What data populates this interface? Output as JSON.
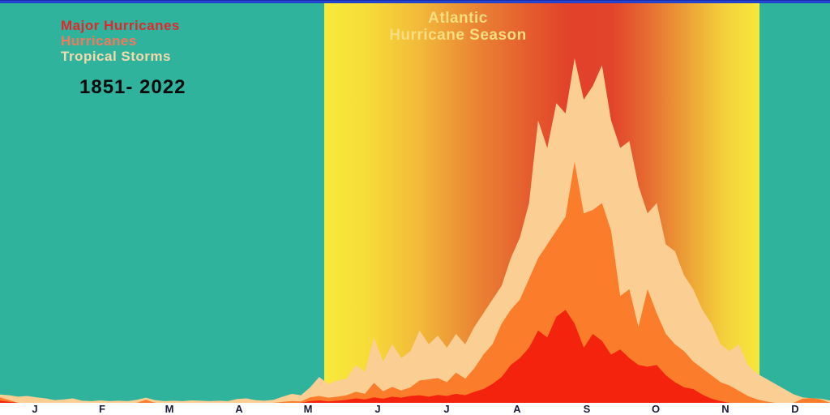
{
  "title": {
    "line1": "Atlantic",
    "line2": "Hurricane Season"
  },
  "legend": {
    "items": [
      {
        "label": "Major Hurricanes",
        "color": "#e2282d"
      },
      {
        "label": "Hurricanes",
        "color": "#f4795b"
      },
      {
        "label": "Tropical Storms",
        "color": "#f6d9ac"
      }
    ],
    "period": "1851- 2022"
  },
  "colors": {
    "background_teal": "#2fb39c",
    "season_band_yellow": "#f8ea3a",
    "season_band_red": "#e2422a",
    "top_border_blue": "#2b52e8",
    "axis_strip": "#ffffff",
    "baseline": "#9191b5",
    "month_label": "#1b1b3a"
  },
  "chart_data": {
    "type": "area",
    "title": "Atlantic Hurricane Season",
    "period": "1851- 2022",
    "x_unit": "day_of_year",
    "start_day": 1,
    "sample_interval_days": 4,
    "y_unit": "relative storm frequency (storms per 100 years)",
    "ylim": [
      0,
      100
    ],
    "season_band": {
      "start": "Jun 1",
      "end": "Nov 30"
    },
    "months": [
      "J",
      "F",
      "M",
      "A",
      "M",
      "J",
      "J",
      "A",
      "S",
      "O",
      "N",
      "D"
    ],
    "month_lengths": [
      31,
      28,
      31,
      30,
      31,
      30,
      31,
      31,
      30,
      31,
      30,
      31
    ],
    "series": [
      {
        "name": "Tropical Storms",
        "color": "#fbce93",
        "values": [
          2.4,
          2.2,
          1.8,
          2.0,
          1.6,
          1.3,
          0.8,
          1.0,
          1.3,
          0.6,
          0.5,
          0.7,
          0.5,
          0.6,
          0.5,
          0.9,
          1.5,
          0.8,
          0.5,
          0.6,
          0.5,
          0.7,
          0.6,
          0.5,
          0.6,
          0.5,
          1.1,
          1.3,
          0.8,
          0.6,
          0.9,
          1.8,
          2.6,
          2.2,
          4.5,
          7.5,
          5.5,
          6.5,
          7.0,
          11,
          9,
          19,
          12,
          17,
          13,
          15,
          21,
          17,
          19.5,
          16,
          20,
          17,
          22,
          26,
          30,
          34,
          42,
          48,
          58,
          82,
          74,
          87,
          84,
          100,
          88,
          92,
          98,
          82,
          74,
          76,
          63,
          55,
          58,
          46,
          44,
          37,
          33,
          27,
          23,
          17,
          15,
          17,
          11,
          8.5,
          7,
          5.5,
          4,
          2.5,
          1.6,
          1.3,
          1.2,
          0.7
        ]
      },
      {
        "name": "Hurricanes",
        "color": "#fb7d2b",
        "values": [
          1.6,
          0.8,
          0,
          0,
          0,
          0,
          0,
          0,
          0,
          0,
          0,
          0,
          0,
          0,
          0,
          0,
          0.9,
          0,
          0,
          0,
          0,
          0,
          0,
          0,
          0,
          0,
          0,
          0,
          0,
          0,
          0,
          0.3,
          0.5,
          0.4,
          1.6,
          2.0,
          1.5,
          1.8,
          2.2,
          3.2,
          2.6,
          5.8,
          3.4,
          4.6,
          3.6,
          4.5,
          6.5,
          6.8,
          7.2,
          6.0,
          8.8,
          7.0,
          10,
          14,
          17,
          23,
          27,
          30,
          36,
          42,
          46,
          50,
          54,
          70,
          55,
          56,
          58,
          50,
          31,
          33,
          22,
          33,
          26,
          20,
          17,
          15,
          12,
          10,
          8,
          6,
          5,
          3.5,
          2,
          1,
          0.4,
          0,
          0,
          0,
          1.2,
          1.4,
          1.0,
          0
        ]
      },
      {
        "name": "Major Hurricanes",
        "color": "#f3230e",
        "values": [
          0.6,
          0.3,
          0,
          0,
          0,
          0,
          0,
          0,
          0,
          0,
          0,
          0,
          0,
          0,
          0,
          0,
          0,
          0,
          0,
          0,
          0,
          0,
          0,
          0,
          0,
          0,
          0,
          0,
          0,
          0,
          0,
          0,
          0,
          0,
          0.5,
          0.7,
          0.4,
          0.6,
          0.9,
          1.3,
          1.0,
          1.6,
          1.2,
          1.8,
          1.5,
          2.0,
          2.2,
          1.8,
          2.3,
          2.0,
          2.6,
          2.2,
          3.2,
          4.0,
          5.5,
          7.5,
          11,
          13,
          16,
          21,
          19,
          25,
          27,
          23,
          16,
          20,
          18,
          14,
          15.5,
          13,
          11,
          10.5,
          11,
          8,
          6,
          4.5,
          4,
          2.4,
          1.2,
          0.5,
          0,
          0,
          0,
          0,
          0,
          0,
          0,
          0,
          0,
          0,
          0,
          0
        ]
      }
    ]
  }
}
